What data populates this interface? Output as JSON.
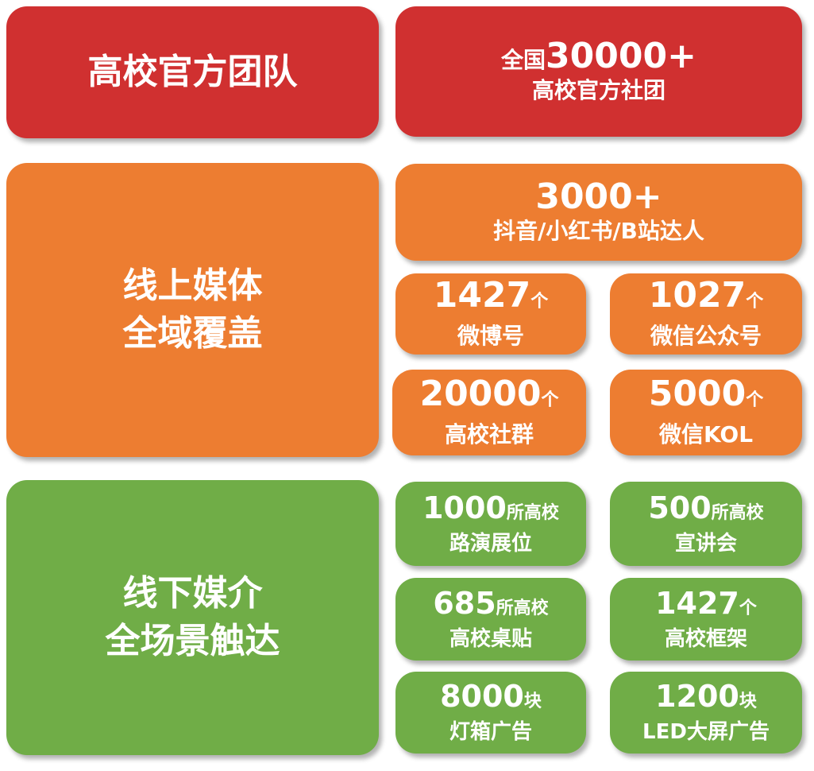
{
  "colors": {
    "red": "#d03030",
    "orange": "#ed7d31",
    "green": "#70ad47"
  },
  "team": {
    "title": "高校官方团队",
    "stat": {
      "prefix": "全国",
      "value": "30000+",
      "label": "高校官方社团"
    }
  },
  "online": {
    "title_line1": "线上媒体",
    "title_line2": "全域覆盖",
    "top": {
      "value": "3000+",
      "label": "抖音/小红书/B站达人"
    },
    "items": [
      {
        "value": "1427",
        "unit": "个",
        "label": "微博号"
      },
      {
        "value": "1027",
        "unit": "个",
        "label": "微信公众号"
      },
      {
        "value": "20000",
        "unit": "个",
        "label": "高校社群"
      },
      {
        "value": "5000",
        "unit": "个",
        "label": "微信KOL"
      }
    ]
  },
  "offline": {
    "title_line1": "线下媒介",
    "title_line2": "全场景触达",
    "items": [
      {
        "value": "1000",
        "unit": "所高校",
        "label": "路演展位"
      },
      {
        "value": "500",
        "unit": "所高校",
        "label": "宣讲会"
      },
      {
        "value": "685",
        "unit": "所高校",
        "label": "高校桌贴"
      },
      {
        "value": "1427",
        "unit": "个",
        "label": "高校框架"
      },
      {
        "value": "8000",
        "unit": "块",
        "label": "灯箱广告"
      },
      {
        "value": "1200",
        "unit": "块",
        "label": "LED大屏广告"
      }
    ]
  }
}
